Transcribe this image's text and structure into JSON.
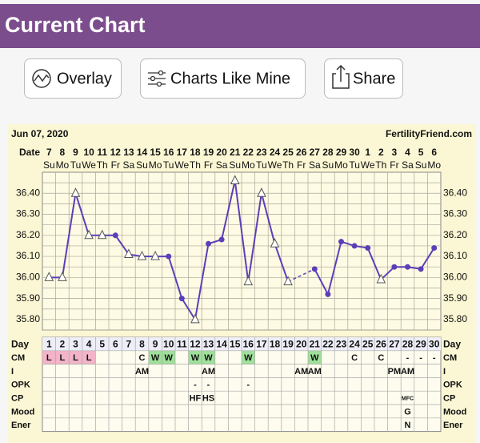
{
  "header": {
    "title": "Current Chart"
  },
  "buttons": [
    "Overlay",
    "Charts Like Mine",
    "Share"
  ],
  "chart_data": {
    "type": "line",
    "date": "Jun 07, 2020",
    "source": "FertilityFriend.com",
    "date_label": "Date",
    "dates": [
      "7",
      "8",
      "9",
      "10",
      "11",
      "12",
      "13",
      "14",
      "15",
      "16",
      "17",
      "18",
      "19",
      "20",
      "21",
      "22",
      "23",
      "24",
      "25",
      "26",
      "27",
      "28",
      "29",
      "30",
      "1",
      "2",
      "3",
      "4",
      "5",
      "6"
    ],
    "weekdays": [
      "Su",
      "Mo",
      "Tu",
      "We",
      "Th",
      "Fr",
      "Sa",
      "Su",
      "Mo",
      "Tu",
      "We",
      "Th",
      "Fr",
      "Sa",
      "Su",
      "Mo",
      "Tu",
      "We",
      "Th",
      "Fr",
      "Sa",
      "Su",
      "Mo",
      "Tu",
      "We",
      "Th",
      "Fr",
      "Sa",
      "Su",
      "Mo"
    ],
    "categories": [
      "1",
      "2",
      "3",
      "4",
      "5",
      "6",
      "7",
      "8",
      "9",
      "10",
      "11",
      "12",
      "13",
      "14",
      "15",
      "16",
      "17",
      "18",
      "19",
      "20",
      "21",
      "22",
      "23",
      "24",
      "25",
      "26",
      "27",
      "28",
      "29",
      "30"
    ],
    "category_label": "Day",
    "values": [
      36.0,
      36.0,
      36.4,
      36.2,
      36.2,
      36.2,
      36.11,
      36.1,
      36.1,
      36.1,
      35.9,
      35.8,
      36.16,
      36.18,
      36.46,
      35.98,
      36.4,
      36.16,
      35.98,
      null,
      36.04,
      35.92,
      36.17,
      36.15,
      36.14,
      35.99,
      36.05,
      36.05,
      36.04,
      36.14
    ],
    "markers": [
      "open",
      "open",
      "open",
      "open",
      "open",
      "dot",
      "open",
      "open",
      "open",
      "dot",
      "dot",
      "open",
      "dot",
      "dot",
      "open",
      "open",
      "open",
      "open",
      "open",
      null,
      "dot",
      "dot",
      "dot",
      "dot",
      "dot",
      "open",
      "dot",
      "dot",
      "dot",
      "dot"
    ],
    "color": "#5b3fb8",
    "ylim": [
      35.75,
      36.5
    ],
    "yticks": [
      {
        "value": 35.8,
        "label": "35.80"
      },
      {
        "value": 35.9,
        "label": "35.90"
      },
      {
        "value": 36.0,
        "label": "36.00"
      },
      {
        "value": 36.1,
        "label": "36.10"
      },
      {
        "value": 36.2,
        "label": "36.20"
      },
      {
        "value": 36.3,
        "label": "36.30"
      },
      {
        "value": 36.4,
        "label": "36.40"
      }
    ],
    "minor_yticks": [
      35.75,
      35.85,
      35.95,
      36.05,
      36.15,
      36.25,
      36.35,
      36.45
    ],
    "grid": true,
    "cell_colors": {
      "L": "#f3b3c9",
      "W": "#9fe09a"
    },
    "rows": [
      {
        "label": "CM",
        "cells": [
          "L",
          "L",
          "L",
          "L",
          null,
          null,
          null,
          "C",
          "W",
          "W",
          null,
          "W",
          "W",
          null,
          null,
          "W",
          null,
          null,
          null,
          null,
          "W",
          null,
          null,
          "C",
          null,
          "C",
          null,
          "-",
          "-",
          "-"
        ]
      },
      {
        "label": "I",
        "cells": [
          null,
          null,
          null,
          null,
          null,
          null,
          null,
          "AM",
          null,
          null,
          null,
          null,
          "AM",
          null,
          null,
          null,
          null,
          null,
          null,
          "AM",
          "AM",
          null,
          null,
          null,
          null,
          null,
          "PM",
          "AM",
          null,
          null
        ]
      },
      {
        "label": "OPK",
        "cells": [
          null,
          null,
          null,
          null,
          null,
          null,
          null,
          null,
          null,
          null,
          null,
          "-",
          "-",
          null,
          null,
          "-",
          null,
          null,
          null,
          null,
          null,
          null,
          null,
          null,
          null,
          null,
          null,
          null,
          null,
          null
        ]
      },
      {
        "label": "CP",
        "cells": [
          null,
          null,
          null,
          null,
          null,
          null,
          null,
          null,
          null,
          null,
          null,
          "HF",
          "HS",
          null,
          null,
          null,
          null,
          null,
          null,
          null,
          null,
          null,
          null,
          null,
          null,
          null,
          null,
          "MFC",
          null,
          null
        ]
      },
      {
        "label": "Mood",
        "cells": [
          null,
          null,
          null,
          null,
          null,
          null,
          null,
          null,
          null,
          null,
          null,
          null,
          null,
          null,
          null,
          null,
          null,
          null,
          null,
          null,
          null,
          null,
          null,
          null,
          null,
          null,
          null,
          "G",
          null,
          null
        ]
      },
      {
        "label": "Ener",
        "cells": [
          null,
          null,
          null,
          null,
          null,
          null,
          null,
          null,
          null,
          null,
          null,
          null,
          null,
          null,
          null,
          null,
          null,
          null,
          null,
          null,
          null,
          null,
          null,
          null,
          null,
          null,
          null,
          "N",
          null,
          null
        ]
      }
    ]
  }
}
